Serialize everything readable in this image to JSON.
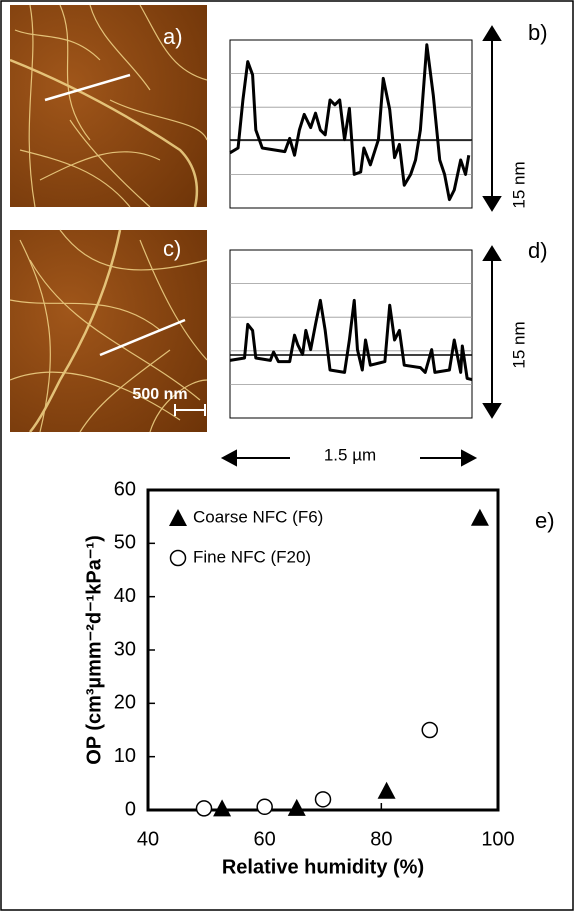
{
  "panels": {
    "a": "a)",
    "b": "b)",
    "c": "c)",
    "d": "d)",
    "e": "e)"
  },
  "scale_bar": "500 nm",
  "height_scale": [
    "15 nm",
    "15 nm"
  ],
  "length_scale": "1.5 µm",
  "chart_data": [
    {
      "type": "line",
      "color": "#000000",
      "xlim": [
        0,
        1.5
      ],
      "ylim": [
        0,
        14
      ],
      "x": [
        0,
        0.05,
        0.08,
        0.11,
        0.14,
        0.16,
        0.2,
        0.34,
        0.37,
        0.4,
        0.43,
        0.46,
        0.5,
        0.53,
        0.56,
        0.59,
        0.62,
        0.65,
        0.68,
        0.71,
        0.74,
        0.77,
        0.81,
        0.83,
        0.87,
        0.92,
        0.95,
        0.99,
        1.02,
        1.05,
        1.08,
        1.12,
        1.15,
        1.18,
        1.22,
        1.26,
        1.3,
        1.33,
        1.36,
        1.39,
        1.43,
        1.46,
        1.48
      ],
      "values": [
        4.6,
        5.0,
        9.0,
        12.2,
        11.1,
        6.5,
        5.0,
        4.7,
        5.8,
        4.4,
        6.5,
        7.8,
        6.7,
        7.9,
        6.5,
        6.1,
        9.0,
        8.6,
        9.0,
        5.7,
        8.3,
        2.8,
        3.0,
        5.0,
        3.6,
        5.7,
        10.8,
        8.2,
        4.2,
        5.3,
        1.9,
        2.8,
        4.0,
        6.5,
        13.6,
        9.4,
        4.0,
        2.8,
        0.7,
        1.5,
        4.0,
        2.8,
        4.4
      ]
    },
    {
      "type": "line",
      "color": "#000000",
      "xlim": [
        0,
        1.5
      ],
      "ylim": [
        0,
        14
      ],
      "x": [
        0,
        0.09,
        0.11,
        0.14,
        0.16,
        0.25,
        0.27,
        0.3,
        0.37,
        0.4,
        0.42,
        0.45,
        0.47,
        0.5,
        0.53,
        0.56,
        0.59,
        0.62,
        0.71,
        0.74,
        0.77,
        0.79,
        0.82,
        0.84,
        0.87,
        0.96,
        0.99,
        1.02,
        1.05,
        1.08,
        1.18,
        1.21,
        1.25,
        1.27,
        1.36,
        1.39,
        1.43,
        1.44,
        1.47,
        1.5
      ],
      "values": [
        4.8,
        5.0,
        7.8,
        7.3,
        5.0,
        4.8,
        5.5,
        4.7,
        4.7,
        6.9,
        6.1,
        5.3,
        7.3,
        5.7,
        7.8,
        9.8,
        7.3,
        4.0,
        3.8,
        6.5,
        9.8,
        5.7,
        4.0,
        6.5,
        4.4,
        4.7,
        9.4,
        6.5,
        7.3,
        4.4,
        4.2,
        3.8,
        5.7,
        3.8,
        4.0,
        6.5,
        3.8,
        6.0,
        3.3,
        3.2
      ]
    },
    {
      "type": "scatter",
      "xlabel": "Relative humidity (%)",
      "ylabel": "OP (cm³µmm⁻²d⁻¹kPa⁻¹)",
      "xlim": [
        40,
        100
      ],
      "xticks": [
        40,
        60,
        80,
        100
      ],
      "ylim": [
        0,
        60
      ],
      "yticks": [
        0,
        10,
        20,
        30,
        40,
        50,
        60
      ],
      "legend": "upper-left",
      "series": [
        {
          "name": "Coarse NFC (F6)",
          "marker": "triangle",
          "color": "#000000",
          "x": [
            52.7,
            65.5,
            80.9,
            96.9
          ],
          "values": [
            0.3,
            0.4,
            3.6,
            54.8
          ]
        },
        {
          "name": "Fine NFC (F20)",
          "marker": "circle",
          "color": "#000000",
          "x": [
            49.6,
            60,
            70,
            88.3
          ],
          "values": [
            0.3,
            0.6,
            2,
            15
          ]
        }
      ]
    }
  ]
}
